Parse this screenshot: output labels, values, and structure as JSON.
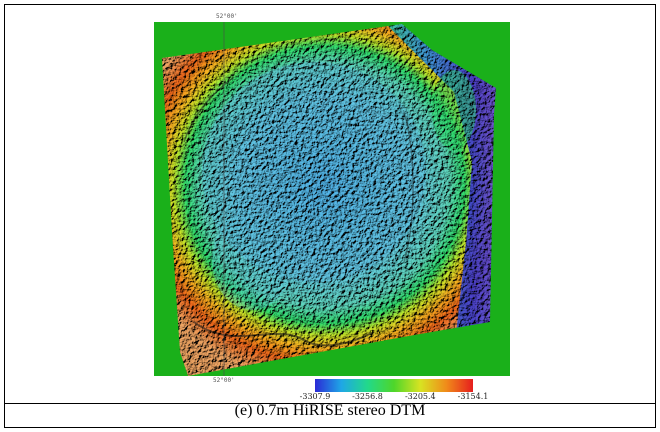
{
  "figure": {
    "caption": "(e) 0.7m HiRISE stereo DTM",
    "grid_label_top": "52°00'",
    "grid_label_bottom": "52°00'",
    "background_color": "#1ab01a",
    "frame_color": "#000000"
  },
  "colorbar": {
    "min": -3307.9,
    "max": -3154.1,
    "ticks": [
      "-3307.9",
      "-3256.8",
      "-3205.4",
      "-3154.1"
    ],
    "tick_values": [
      -3307.9,
      -3256.8,
      -3205.4,
      -3154.1
    ],
    "colors": [
      "#2a2ad6",
      "#1fa7e6",
      "#22d98a",
      "#4ed62a",
      "#d8e322",
      "#f08a1a",
      "#e61e1e"
    ]
  }
}
